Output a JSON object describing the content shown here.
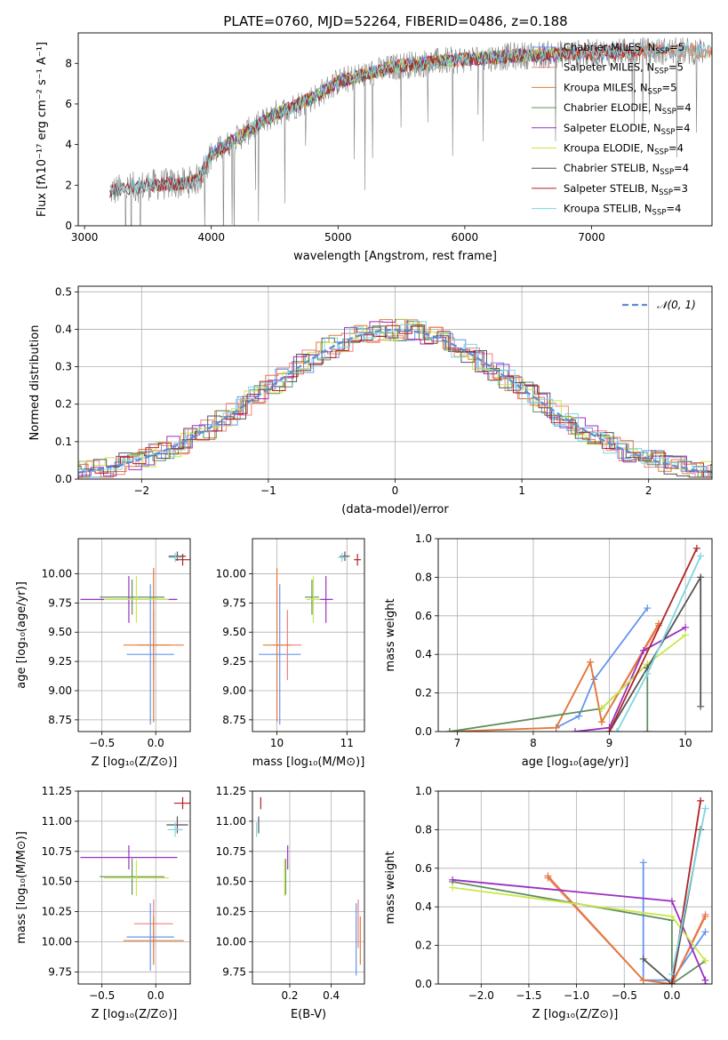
{
  "colors": {
    "chabrier_miles": "#6495ed",
    "salpeter_miles": "#f08080",
    "kroupa_miles": "#e07b39",
    "chabrier_elodie": "#5f8f5f",
    "salpeter_elodie": "#9b30c0",
    "kroupa_elodie": "#c8e84a",
    "chabrier_stelib": "#555555",
    "salpeter_stelib": "#b22222",
    "kroupa_stelib": "#7ed6df",
    "spectrum": "#808080",
    "normal": "#5b8bd6"
  },
  "chart_data": [
    {
      "id": "spectrum",
      "type": "line",
      "title": "PLATE=0760, MJD=52264, FIBERID=0486, z=0.188",
      "xlabel": "wavelength [Angstrom, rest frame]",
      "ylabel": "Flux [fλ10⁻¹⁷ erg cm⁻² s⁻¹ A⁻¹]",
      "xlim": [
        2950,
        7950
      ],
      "ylim": [
        0,
        9.5
      ],
      "xticks": [
        3000,
        4000,
        5000,
        6000,
        7000
      ],
      "yticks": [
        0,
        2,
        4,
        6,
        8
      ],
      "legend_position": "top-right",
      "legend": [
        {
          "label": "Chabrier MILES, N",
          "sub": "SSP",
          "suffix": "=5",
          "color": "chabrier_miles"
        },
        {
          "label": "Salpeter MILES, N",
          "sub": "SSP",
          "suffix": "=5",
          "color": "salpeter_miles"
        },
        {
          "label": "Kroupa MILES, N",
          "sub": "SSP",
          "suffix": "=5",
          "color": "kroupa_miles"
        },
        {
          "label": "Chabrier ELODIE, N",
          "sub": "SSP",
          "suffix": "=4",
          "color": "chabrier_elodie"
        },
        {
          "label": "Salpeter ELODIE, N",
          "sub": "SSP",
          "suffix": "=4",
          "color": "salpeter_elodie"
        },
        {
          "label": "Kroupa ELODIE, N",
          "sub": "SSP",
          "suffix": "=4",
          "color": "kroupa_elodie"
        },
        {
          "label": "Chabrier STELIB, N",
          "sub": "SSP",
          "suffix": "=4",
          "color": "chabrier_stelib"
        },
        {
          "label": "Salpeter STELIB, N",
          "sub": "SSP",
          "suffix": "=3",
          "color": "salpeter_stelib"
        },
        {
          "label": "Kroupa STELIB, N",
          "sub": "SSP",
          "suffix": "=4",
          "color": "kroupa_stelib"
        }
      ],
      "continuum": {
        "x": [
          3200,
          3500,
          3800,
          3900,
          4000,
          4200,
          4500,
          4800,
          5000,
          5500,
          6000,
          6500,
          7000,
          7400,
          7900
        ],
        "y": [
          1.7,
          2.0,
          2.1,
          2.3,
          3.5,
          4.3,
          5.5,
          6.3,
          7.1,
          7.9,
          8.2,
          8.4,
          8.5,
          8.6,
          8.6
        ]
      },
      "grid": false
    },
    {
      "id": "residuals",
      "type": "bar",
      "xlabel": "(data-model)/error",
      "ylabel": "Normed distribution",
      "xlim": [
        -2.5,
        2.5
      ],
      "ylim": [
        0,
        0.515
      ],
      "xticks": [
        -2,
        -1,
        0,
        1,
        2
      ],
      "yticks": [
        0.0,
        0.1,
        0.2,
        0.3,
        0.4,
        0.5
      ],
      "grid": true,
      "legend_position": "top-right",
      "normal_label": "𝒩(0, 1)",
      "bin_width": 0.1
    },
    {
      "id": "age-vs-z",
      "type": "scatter",
      "xlabel": "Z [log₁₀(Z/Z⊙)]",
      "ylabel": "age  [log₁₀(age/yr)]",
      "xlim": [
        -0.72,
        0.32
      ],
      "ylim": [
        8.65,
        10.3
      ],
      "xticks": [
        -0.5,
        0.0
      ],
      "yticks": [
        8.75,
        9.0,
        9.25,
        9.5,
        9.75,
        10.0
      ],
      "grid": true,
      "points": [
        {
          "x": -0.05,
          "xerr": 0.22,
          "y": 9.31,
          "yerr": 0.6,
          "color": "chabrier_miles"
        },
        {
          "x": -0.02,
          "xerr": 0.15,
          "y": 9.39,
          "yerr": 0.3,
          "color": "salpeter_miles"
        },
        {
          "x": -0.02,
          "xerr": 0.28,
          "y": 9.39,
          "yerr": 0.66,
          "color": "kroupa_miles"
        },
        {
          "x": -0.22,
          "xerr": 0.3,
          "y": 9.8,
          "yerr": 0.15,
          "color": "chabrier_elodie"
        },
        {
          "x": -0.25,
          "xerr": 0.45,
          "y": 9.78,
          "yerr": 0.2,
          "color": "salpeter_elodie"
        },
        {
          "x": -0.18,
          "xerr": 0.3,
          "y": 9.78,
          "yerr": 0.2,
          "color": "kroupa_elodie"
        },
        {
          "x": 0.2,
          "xerr": 0.08,
          "y": 10.15,
          "yerr": 0.04,
          "color": "chabrier_stelib"
        },
        {
          "x": 0.25,
          "xerr": 0.07,
          "y": 10.12,
          "yerr": 0.05,
          "color": "salpeter_stelib"
        },
        {
          "x": 0.18,
          "xerr": 0.06,
          "y": 10.14,
          "yerr": 0.04,
          "color": "kroupa_stelib"
        }
      ]
    },
    {
      "id": "age-vs-mass",
      "type": "scatter",
      "xlabel": "mass [log₁₀(M/M⊙)]",
      "ylabel": "",
      "xlim": [
        9.65,
        11.25
      ],
      "ylim": [
        8.65,
        10.3
      ],
      "xticks": [
        10,
        11
      ],
      "yticks": [
        8.75,
        9.0,
        9.25,
        9.5,
        9.75,
        10.0
      ],
      "grid": true,
      "points": [
        {
          "x": 10.04,
          "xerr": 0.3,
          "y": 9.31,
          "yerr": 0.6,
          "color": "chabrier_miles"
        },
        {
          "x": 10.15,
          "xerr": 0.2,
          "y": 9.39,
          "yerr": 0.3,
          "color": "salpeter_miles"
        },
        {
          "x": 10.0,
          "xerr": 0.2,
          "y": 9.39,
          "yerr": 0.66,
          "color": "kroupa_miles"
        },
        {
          "x": 10.5,
          "xerr": 0.1,
          "y": 9.8,
          "yerr": 0.15,
          "color": "chabrier_elodie"
        },
        {
          "x": 10.7,
          "xerr": 0.1,
          "y": 9.78,
          "yerr": 0.2,
          "color": "salpeter_elodie"
        },
        {
          "x": 10.52,
          "xerr": 0.1,
          "y": 9.78,
          "yerr": 0.2,
          "color": "kroupa_elodie"
        },
        {
          "x": 10.97,
          "xerr": 0.07,
          "y": 10.15,
          "yerr": 0.04,
          "color": "chabrier_stelib"
        },
        {
          "x": 11.15,
          "xerr": 0.05,
          "y": 10.12,
          "yerr": 0.05,
          "color": "salpeter_stelib"
        },
        {
          "x": 10.93,
          "xerr": 0.06,
          "y": 10.14,
          "yerr": 0.04,
          "color": "kroupa_stelib"
        }
      ]
    },
    {
      "id": "weight-vs-age",
      "type": "line",
      "xlabel": "age  [log₁₀(age/yr)]",
      "ylabel": "mass weight",
      "xlim": [
        6.75,
        10.35
      ],
      "ylim": [
        0,
        1.0
      ],
      "xticks": [
        7,
        8,
        9,
        10
      ],
      "yticks": [
        0.0,
        0.2,
        0.4,
        0.6,
        0.8,
        1.0
      ],
      "grid": true,
      "series": [
        {
          "color": "chabrier_miles",
          "x": [
            8.3,
            8.6,
            8.8,
            9.5
          ],
          "y": [
            0.02,
            0.08,
            0.27,
            0.64
          ]
        },
        {
          "color": "salpeter_miles",
          "x": [
            8.3,
            8.75,
            8.9,
            9.65
          ],
          "y": [
            0.02,
            0.36,
            0.05,
            0.55
          ]
        },
        {
          "color": "kroupa_miles",
          "x": [
            6.9,
            8.3,
            8.75,
            8.9,
            9.65
          ],
          "y": [
            0.0,
            0.02,
            0.36,
            0.05,
            0.56
          ]
        },
        {
          "color": "chabrier_elodie",
          "x": [
            6.9,
            8.9,
            9.5,
            9.5
          ],
          "y": [
            0.0,
            0.12,
            0.35,
            0.0
          ]
        },
        {
          "color": "salpeter_elodie",
          "x": [
            8.55,
            9.0,
            9.45,
            10.0
          ],
          "y": [
            0.0,
            0.02,
            0.42,
            0.54
          ]
        },
        {
          "color": "kroupa_elodie",
          "x": [
            8.9,
            9.5,
            10.0
          ],
          "y": [
            0.12,
            0.35,
            0.5
          ]
        },
        {
          "color": "chabrier_stelib",
          "x": [
            9.0,
            9.5,
            10.2,
            10.2
          ],
          "y": [
            0.0,
            0.33,
            0.8,
            0.13
          ]
        },
        {
          "color": "salpeter_stelib",
          "x": [
            9.0,
            10.15
          ],
          "y": [
            0.0,
            0.95
          ]
        },
        {
          "color": "kroupa_stelib",
          "x": [
            9.1,
            9.5,
            10.2
          ],
          "y": [
            0.0,
            0.3,
            0.91
          ]
        }
      ]
    },
    {
      "id": "mass-vs-z",
      "type": "scatter",
      "xlabel": "Z [log₁₀(Z/Z⊙)]",
      "ylabel": "mass [log₁₀(M/M⊙)]",
      "xlim": [
        -0.72,
        0.32
      ],
      "ylim": [
        9.65,
        11.25
      ],
      "xticks": [
        -0.5,
        0.0
      ],
      "yticks": [
        9.75,
        10.0,
        10.25,
        10.5,
        10.75,
        11.0,
        11.25
      ],
      "grid": true,
      "points": [
        {
          "x": -0.05,
          "xerr": 0.22,
          "y": 10.04,
          "yerr": 0.28,
          "color": "chabrier_miles"
        },
        {
          "x": -0.02,
          "xerr": 0.18,
          "y": 10.15,
          "yerr": 0.2,
          "color": "salpeter_miles"
        },
        {
          "x": -0.02,
          "xerr": 0.28,
          "y": 10.01,
          "yerr": 0.2,
          "color": "kroupa_miles"
        },
        {
          "x": -0.22,
          "xerr": 0.3,
          "y": 10.54,
          "yerr": 0.15,
          "color": "chabrier_elodie"
        },
        {
          "x": -0.25,
          "xerr": 0.45,
          "y": 10.7,
          "yerr": 0.1,
          "color": "salpeter_elodie"
        },
        {
          "x": -0.18,
          "xerr": 0.3,
          "y": 10.53,
          "yerr": 0.15,
          "color": "kroupa_elodie"
        },
        {
          "x": 0.2,
          "xerr": 0.1,
          "y": 10.97,
          "yerr": 0.07,
          "color": "chabrier_stelib"
        },
        {
          "x": 0.25,
          "xerr": 0.08,
          "y": 11.15,
          "yerr": 0.05,
          "color": "salpeter_stelib"
        },
        {
          "x": 0.18,
          "xerr": 0.07,
          "y": 10.93,
          "yerr": 0.06,
          "color": "kroupa_stelib"
        }
      ]
    },
    {
      "id": "mass-vs-ebv",
      "type": "scatter",
      "xlabel": "E(B-V)",
      "ylabel": "",
      "xlim": [
        0.02,
        0.56
      ],
      "ylim": [
        9.65,
        11.25
      ],
      "xticks": [
        0.2,
        0.4
      ],
      "yticks": [
        9.75,
        10.0,
        10.25,
        10.5,
        10.75,
        11.0,
        11.25
      ],
      "grid": true,
      "points": [
        {
          "x": 0.52,
          "xerr": 0.0,
          "y": 10.02,
          "yerr": 0.3,
          "color": "chabrier_miles"
        },
        {
          "x": 0.53,
          "xerr": 0.0,
          "y": 10.15,
          "yerr": 0.2,
          "color": "salpeter_miles"
        },
        {
          "x": 0.54,
          "xerr": 0.0,
          "y": 10.01,
          "yerr": 0.2,
          "color": "kroupa_miles"
        },
        {
          "x": 0.18,
          "xerr": 0.0,
          "y": 10.54,
          "yerr": 0.15,
          "color": "chabrier_elodie"
        },
        {
          "x": 0.19,
          "xerr": 0.0,
          "y": 10.7,
          "yerr": 0.1,
          "color": "salpeter_elodie"
        },
        {
          "x": 0.175,
          "xerr": 0.0,
          "y": 10.53,
          "yerr": 0.15,
          "color": "kroupa_elodie"
        },
        {
          "x": 0.05,
          "xerr": 0.0,
          "y": 10.97,
          "yerr": 0.07,
          "color": "chabrier_stelib"
        },
        {
          "x": 0.06,
          "xerr": 0.0,
          "y": 11.15,
          "yerr": 0.05,
          "color": "salpeter_stelib"
        },
        {
          "x": 0.04,
          "xerr": 0.0,
          "y": 10.93,
          "yerr": 0.06,
          "color": "kroupa_stelib"
        }
      ]
    },
    {
      "id": "weight-vs-z",
      "type": "line",
      "xlabel": "Z [log₁₀(Z/Z⊙)]",
      "ylabel": "mass weight",
      "xlim": [
        -2.45,
        0.42
      ],
      "ylim": [
        0,
        1.0
      ],
      "xticks": [
        -2.0,
        -1.5,
        -1.0,
        -0.5,
        0.0
      ],
      "yticks": [
        0.0,
        0.2,
        0.4,
        0.6,
        0.8,
        1.0
      ],
      "grid": true,
      "series": [
        {
          "color": "chabrier_miles",
          "x": [
            -0.3,
            -0.3,
            0.0,
            0.35
          ],
          "y": [
            0.63,
            0.02,
            0.02,
            0.27
          ]
        },
        {
          "color": "salpeter_miles",
          "x": [
            -1.3,
            -0.3,
            0.0,
            0.35
          ],
          "y": [
            0.55,
            0.02,
            0.0,
            0.36
          ]
        },
        {
          "color": "kroupa_miles",
          "x": [
            -1.3,
            -0.3,
            0.0,
            0.35
          ],
          "y": [
            0.56,
            0.02,
            0.0,
            0.35
          ]
        },
        {
          "color": "chabrier_elodie",
          "x": [
            -2.3,
            0.0,
            0.0,
            0.35
          ],
          "y": [
            0.53,
            0.33,
            0.0,
            0.12
          ]
        },
        {
          "color": "salpeter_elodie",
          "x": [
            -2.3,
            0.0,
            0.35,
            0.35
          ],
          "y": [
            0.54,
            0.43,
            0.02,
            0.0
          ]
        },
        {
          "color": "kroupa_elodie",
          "x": [
            -2.3,
            0.0,
            0.35
          ],
          "y": [
            0.5,
            0.35,
            0.12
          ]
        },
        {
          "color": "chabrier_stelib",
          "x": [
            -0.3,
            0.0,
            0.3
          ],
          "y": [
            0.13,
            0.0,
            0.8
          ]
        },
        {
          "color": "salpeter_stelib",
          "x": [
            0.0,
            0.3
          ],
          "y": [
            0.0,
            0.95
          ]
        },
        {
          "color": "kroupa_stelib",
          "x": [
            0.0,
            0.35
          ],
          "y": [
            0.05,
            0.91
          ]
        }
      ]
    }
  ]
}
